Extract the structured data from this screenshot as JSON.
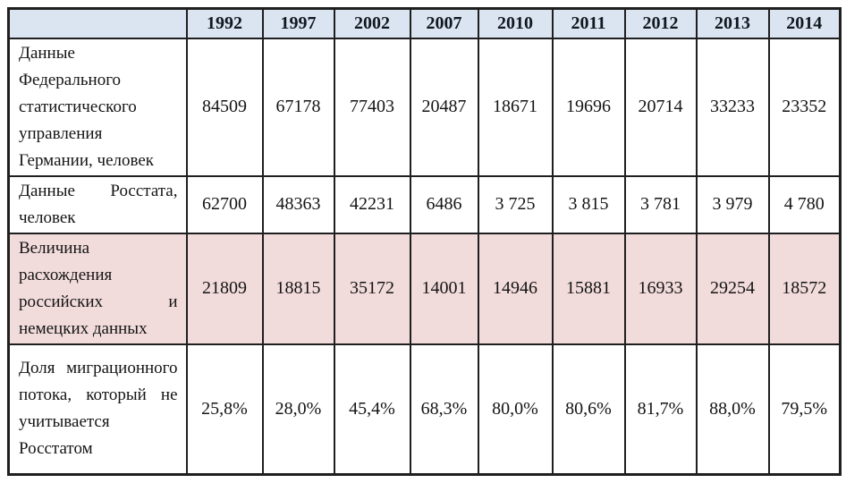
{
  "table": {
    "description_name": "migration-data-comparison-table",
    "columns": [
      "",
      "1992",
      "1997",
      "2002",
      "2007",
      "2010",
      "2011",
      "2012",
      "2013",
      "2014"
    ],
    "rows": [
      {
        "label": "Данные Федерального статистического управления Германии, человек",
        "values": [
          "84509",
          "67178",
          "77403",
          "20487",
          "18671",
          "19696",
          "20714",
          "33233",
          "23352"
        ],
        "highlighted": false
      },
      {
        "label": "Данные Росстата, человек",
        "values": [
          "62700",
          "48363",
          "42231",
          "6486",
          "3 725",
          "3 815",
          "3 781",
          "3 979",
          "4 780"
        ],
        "highlighted": false
      },
      {
        "label": "Величина расхождения российских и немецких данных",
        "values": [
          "21809",
          "18815",
          "35172",
          "14001",
          "14946",
          "15881",
          "16933",
          "29254",
          "18572"
        ],
        "highlighted": true
      },
      {
        "label": "Доля миграционного потока, который не учитывается Росстатом",
        "values": [
          "25,8%",
          "28,0%",
          "45,4%",
          "68,3%",
          "80,0%",
          "80,6%",
          "81,7%",
          "88,0%",
          "79,5%"
        ],
        "highlighted": false
      }
    ],
    "colors": {
      "header_bg": "#dbe5f1",
      "highlight_bg": "#f2dbdb",
      "border": "#1f1f1f",
      "text": "#141414"
    }
  }
}
